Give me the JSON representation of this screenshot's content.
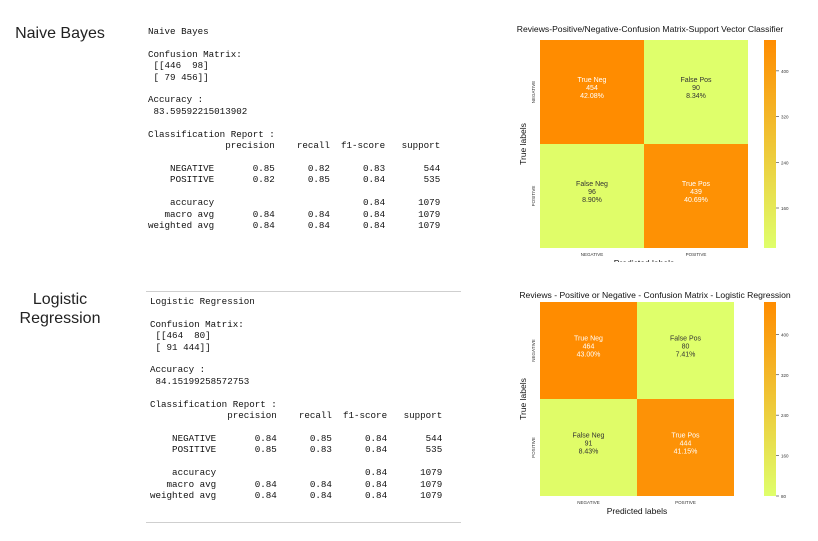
{
  "sections": [
    {
      "label_lines": [
        "Naive Bayes"
      ],
      "report_lines": [
        "Naive Bayes",
        "",
        "Confusion Matrix:",
        " [[446  98]",
        " [ 79 456]]",
        "",
        "Accuracy :",
        " 83.59592215013902",
        "",
        "Classification Report :",
        "              precision    recall  f1-score   support",
        "",
        "    NEGATIVE       0.85      0.82      0.83       544",
        "    POSITIVE       0.82      0.85      0.84       535",
        "",
        "    accuracy                           0.84      1079",
        "   macro avg       0.84      0.84      0.84      1079",
        "weighted avg       0.84      0.84      0.84      1079"
      ]
    },
    {
      "label_lines": [
        "Logistic",
        "Regression"
      ],
      "report_lines": [
        "Logistic Regression",
        "",
        "Confusion Matrix:",
        " [[464  80]",
        " [ 91 444]]",
        "",
        "Accuracy :",
        " 84.15199258572753",
        "",
        "Classification Report :",
        "              precision    recall  f1-score   support",
        "",
        "    NEGATIVE       0.84      0.85      0.84       544",
        "    POSITIVE       0.85      0.83      0.84       535",
        "",
        "    accuracy                           0.84      1079",
        "   macro avg       0.84      0.84      0.84      1079",
        "weighted avg       0.84      0.84      0.84      1079"
      ]
    }
  ],
  "chart_data": [
    {
      "type": "heatmap",
      "title": "Reviews-Positive/Negative-Confusion Matrix-Support Vector Classifier",
      "xlabel": "Predicted labels",
      "ylabel": "True labels",
      "x_categories": [
        "NEGATIVE",
        "POSITIVE"
      ],
      "y_categories": [
        "NEGATIVE",
        "POSITIVE"
      ],
      "values": [
        [
          454,
          90
        ],
        [
          96,
          439
        ]
      ],
      "cell_labels": [
        [
          [
            "True Neg",
            "454",
            "42.08%"
          ],
          [
            "False Pos",
            "90",
            "8.34%"
          ]
        ],
        [
          [
            "False Neg",
            "96",
            "8.90%"
          ],
          [
            "True Pos",
            "439",
            "40.69%"
          ]
        ]
      ],
      "colorbar": {
        "ticks": [
          "400",
          "320",
          "240",
          "160"
        ],
        "range": [
          90,
          454
        ]
      },
      "colormap": {
        "low": "#dfff6b",
        "high": "#ff8c00"
      }
    },
    {
      "type": "heatmap",
      "title": "Reviews - Positive or Negative - Confusion Matrix - Logistic Regression",
      "xlabel": "Predicted labels",
      "ylabel": "True labels",
      "x_categories": [
        "NEGATIVE",
        "POSITIVE"
      ],
      "y_categories": [
        "NEGATIVE",
        "POSITIVE"
      ],
      "values": [
        [
          464,
          80
        ],
        [
          91,
          444
        ]
      ],
      "cell_labels": [
        [
          [
            "True Neg",
            "464",
            "43.00%"
          ],
          [
            "False Pos",
            "80",
            "7.41%"
          ]
        ],
        [
          [
            "False Neg",
            "91",
            "8.43%"
          ],
          [
            "True Pos",
            "444",
            "41.15%"
          ]
        ]
      ],
      "colorbar": {
        "ticks": [
          "400",
          "320",
          "240",
          "160",
          "80"
        ],
        "range": [
          80,
          464
        ]
      },
      "colormap": {
        "low": "#dfff6b",
        "high": "#ff8c00"
      }
    }
  ]
}
